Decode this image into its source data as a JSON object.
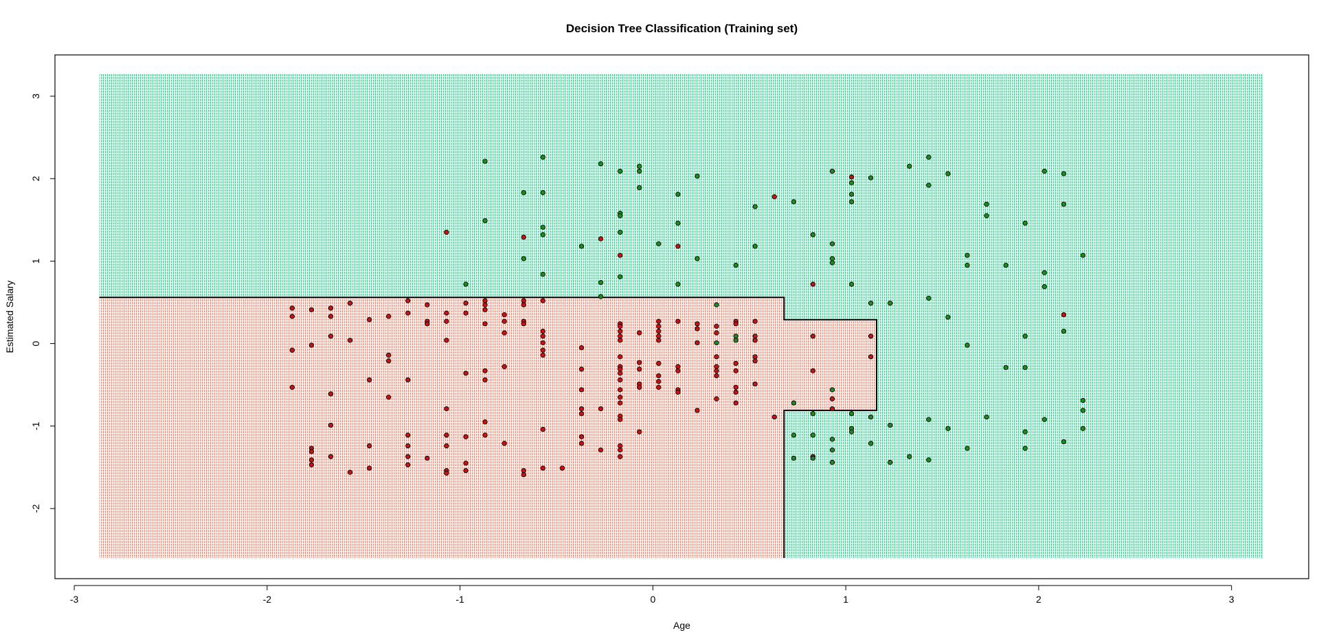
{
  "chart_data": {
    "type": "scatter",
    "title": "Decision Tree Classification (Training set)",
    "xlabel": "Age",
    "ylabel": "Estimated Salary",
    "xlim": [
      -3.1,
      3.4
    ],
    "ylim": [
      -2.85,
      3.5
    ],
    "x_ticks": [
      "-3",
      "-2",
      "-1",
      "0",
      "1",
      "2",
      "3"
    ],
    "y_ticks": [
      "-2",
      "-1",
      "0",
      "1",
      "2",
      "3"
    ],
    "grid": false,
    "region_extent": {
      "x": [
        -2.87,
        3.16
      ],
      "y": [
        -2.6,
        3.27
      ]
    },
    "colors": {
      "region_class0": "#f08a78",
      "region_class1": "#3fcf8e",
      "point_class0": "#cc1111",
      "point_class1": "#1c8c1c",
      "boundary": "#000000"
    },
    "decision_boundary": [
      [
        -2.87,
        0.56
      ],
      [
        0.68,
        0.56
      ],
      [
        0.68,
        0.29
      ],
      [
        1.16,
        0.29
      ],
      [
        1.16,
        -0.81
      ],
      [
        0.68,
        -0.81
      ],
      [
        0.68,
        -2.6
      ]
    ],
    "series": [
      {
        "class": 0,
        "points": [
          [
            -1.87,
            0.43
          ],
          [
            -1.87,
            0.33
          ],
          [
            -1.87,
            -0.08
          ],
          [
            -1.87,
            -0.53
          ],
          [
            -1.77,
            0.41
          ],
          [
            -1.77,
            -0.02
          ],
          [
            -1.77,
            -1.27
          ],
          [
            -1.77,
            -1.31
          ],
          [
            -1.77,
            -1.41
          ],
          [
            -1.77,
            -1.47
          ],
          [
            -1.67,
            0.43
          ],
          [
            -1.67,
            0.33
          ],
          [
            -1.67,
            0.09
          ],
          [
            -1.67,
            -0.61
          ],
          [
            -1.67,
            -0.99
          ],
          [
            -1.67,
            -1.37
          ],
          [
            -1.57,
            0.49
          ],
          [
            -1.57,
            0.04
          ],
          [
            -1.57,
            -1.56
          ],
          [
            -1.47,
            0.29
          ],
          [
            -1.47,
            -0.44
          ],
          [
            -1.47,
            -1.24
          ],
          [
            -1.47,
            -1.51
          ],
          [
            -1.37,
            0.33
          ],
          [
            -1.37,
            -0.14
          ],
          [
            -1.37,
            -0.21
          ],
          [
            -1.37,
            -0.65
          ],
          [
            -1.27,
            0.52
          ],
          [
            -1.27,
            0.37
          ],
          [
            -1.27,
            -0.44
          ],
          [
            -1.27,
            -1.11
          ],
          [
            -1.27,
            -1.24
          ],
          [
            -1.27,
            -1.37
          ],
          [
            -1.27,
            -1.47
          ],
          [
            -1.17,
            0.47
          ],
          [
            -1.17,
            0.27
          ],
          [
            -1.17,
            0.24
          ],
          [
            -1.17,
            -1.39
          ],
          [
            -1.07,
            1.35
          ],
          [
            -1.07,
            0.37
          ],
          [
            -1.07,
            0.27
          ],
          [
            -1.07,
            0.04
          ],
          [
            -1.07,
            -0.79
          ],
          [
            -1.07,
            -1.11
          ],
          [
            -1.07,
            -1.24
          ],
          [
            -1.07,
            -1.54
          ],
          [
            -1.07,
            -1.57
          ],
          [
            -0.97,
            0.49
          ],
          [
            -0.97,
            0.37
          ],
          [
            -0.97,
            -0.36
          ],
          [
            -0.97,
            -1.13
          ],
          [
            -0.97,
            -1.45
          ],
          [
            -0.97,
            -1.54
          ],
          [
            -0.87,
            0.52
          ],
          [
            -0.87,
            0.47
          ],
          [
            -0.87,
            0.41
          ],
          [
            -0.87,
            0.24
          ],
          [
            -0.87,
            -0.33
          ],
          [
            -0.87,
            -0.44
          ],
          [
            -0.87,
            -0.95
          ],
          [
            -0.87,
            -1.11
          ],
          [
            -0.77,
            0.35
          ],
          [
            -0.77,
            0.27
          ],
          [
            -0.77,
            0.13
          ],
          [
            -0.77,
            -0.28
          ],
          [
            -0.77,
            -1.21
          ],
          [
            -0.67,
            1.29
          ],
          [
            -0.67,
            0.52
          ],
          [
            -0.67,
            0.47
          ],
          [
            -0.67,
            0.27
          ],
          [
            -0.67,
            0.24
          ],
          [
            -0.67,
            -1.54
          ],
          [
            -0.67,
            -1.59
          ],
          [
            -0.57,
            0.52
          ],
          [
            -0.57,
            0.15
          ],
          [
            -0.57,
            0.09
          ],
          [
            -0.57,
            0.01
          ],
          [
            -0.57,
            -0.08
          ],
          [
            -0.57,
            -0.14
          ],
          [
            -0.57,
            -1.04
          ],
          [
            -0.57,
            -1.51
          ],
          [
            -0.47,
            -1.51
          ],
          [
            -0.37,
            -0.05
          ],
          [
            -0.37,
            -0.31
          ],
          [
            -0.37,
            -0.56
          ],
          [
            -0.37,
            -0.79
          ],
          [
            -0.37,
            -0.85
          ],
          [
            -0.37,
            -1.13
          ],
          [
            -0.37,
            -1.21
          ],
          [
            -0.27,
            1.27
          ],
          [
            -0.27,
            -0.79
          ],
          [
            -0.27,
            -1.29
          ],
          [
            -0.17,
            1.07
          ],
          [
            -0.17,
            0.24
          ],
          [
            -0.17,
            0.21
          ],
          [
            -0.17,
            0.15
          ],
          [
            -0.17,
            0.09
          ],
          [
            -0.17,
            0.04
          ],
          [
            -0.17,
            -0.16
          ],
          [
            -0.17,
            -0.28
          ],
          [
            -0.17,
            -0.31
          ],
          [
            -0.17,
            -0.36
          ],
          [
            -0.17,
            -0.44
          ],
          [
            -0.17,
            -0.56
          ],
          [
            -0.17,
            -0.65
          ],
          [
            -0.17,
            -0.72
          ],
          [
            -0.17,
            -0.88
          ],
          [
            -0.17,
            -0.92
          ],
          [
            -0.17,
            -1.24
          ],
          [
            -0.17,
            -1.29
          ],
          [
            -0.17,
            -1.37
          ],
          [
            -0.07,
            0.13
          ],
          [
            -0.07,
            -0.23
          ],
          [
            -0.07,
            -0.31
          ],
          [
            -0.07,
            -0.49
          ],
          [
            -0.07,
            -0.53
          ],
          [
            -0.07,
            -1.07
          ],
          [
            0.03,
            0.27
          ],
          [
            0.03,
            0.21
          ],
          [
            0.03,
            0.15
          ],
          [
            0.03,
            0.09
          ],
          [
            0.03,
            0.04
          ],
          [
            0.03,
            -0.24
          ],
          [
            0.03,
            -0.39
          ],
          [
            0.03,
            -0.46
          ],
          [
            0.03,
            -0.53
          ],
          [
            0.13,
            1.18
          ],
          [
            0.13,
            0.27
          ],
          [
            0.13,
            -0.28
          ],
          [
            0.13,
            -0.33
          ],
          [
            0.13,
            -0.56
          ],
          [
            0.13,
            -0.59
          ],
          [
            0.23,
            0.24
          ],
          [
            0.23,
            0.18
          ],
          [
            0.23,
            0.01
          ],
          [
            0.23,
            -0.81
          ],
          [
            0.33,
            0.21
          ],
          [
            0.33,
            0.13
          ],
          [
            0.33,
            -0.16
          ],
          [
            0.33,
            -0.28
          ],
          [
            0.33,
            -0.33
          ],
          [
            0.33,
            -0.39
          ],
          [
            0.33,
            -0.67
          ],
          [
            0.43,
            0.27
          ],
          [
            0.43,
            0.24
          ],
          [
            0.43,
            -0.24
          ],
          [
            0.43,
            -0.33
          ],
          [
            0.43,
            -0.53
          ],
          [
            0.43,
            -0.59
          ],
          [
            0.43,
            -0.72
          ],
          [
            0.53,
            0.27
          ],
          [
            0.53,
            0.09
          ],
          [
            0.53,
            0.04
          ],
          [
            0.53,
            -0.16
          ],
          [
            0.53,
            -0.21
          ],
          [
            0.53,
            -0.49
          ],
          [
            0.63,
            1.78
          ],
          [
            0.63,
            -0.89
          ],
          [
            0.83,
            0.72
          ],
          [
            0.83,
            0.09
          ],
          [
            0.83,
            -0.33
          ],
          [
            0.83,
            -1.37
          ],
          [
            0.93,
            -0.67
          ],
          [
            0.93,
            -0.79
          ],
          [
            1.03,
            2.02
          ],
          [
            1.13,
            0.09
          ],
          [
            1.13,
            -0.16
          ],
          [
            2.13,
            0.35
          ]
        ]
      },
      {
        "class": 1,
        "points": [
          [
            -0.87,
            2.21
          ],
          [
            -0.97,
            0.72
          ],
          [
            -0.87,
            1.49
          ],
          [
            -0.67,
            1.83
          ],
          [
            -0.67,
            1.03
          ],
          [
            -0.57,
            2.26
          ],
          [
            -0.57,
            1.83
          ],
          [
            -0.57,
            1.41
          ],
          [
            -0.57,
            1.32
          ],
          [
            -0.57,
            0.84
          ],
          [
            -0.37,
            1.18
          ],
          [
            -0.27,
            2.18
          ],
          [
            -0.27,
            0.74
          ],
          [
            -0.27,
            0.57
          ],
          [
            -0.17,
            2.09
          ],
          [
            -0.17,
            1.58
          ],
          [
            -0.17,
            1.55
          ],
          [
            -0.17,
            1.35
          ],
          [
            -0.17,
            0.81
          ],
          [
            -0.07,
            2.15
          ],
          [
            -0.07,
            2.09
          ],
          [
            -0.07,
            1.89
          ],
          [
            0.03,
            1.21
          ],
          [
            0.13,
            1.81
          ],
          [
            0.13,
            1.46
          ],
          [
            0.13,
            0.72
          ],
          [
            0.23,
            2.03
          ],
          [
            0.23,
            1.03
          ],
          [
            0.33,
            0.47
          ],
          [
            0.33,
            0.01
          ],
          [
            0.43,
            0.95
          ],
          [
            0.43,
            0.09
          ],
          [
            0.43,
            0.04
          ],
          [
            0.53,
            1.66
          ],
          [
            0.53,
            1.18
          ],
          [
            0.73,
            1.72
          ],
          [
            0.73,
            -0.72
          ],
          [
            0.73,
            -1.11
          ],
          [
            0.73,
            -1.39
          ],
          [
            0.83,
            1.32
          ],
          [
            0.83,
            -0.85
          ],
          [
            0.83,
            -1.11
          ],
          [
            0.83,
            -1.39
          ],
          [
            0.93,
            2.09
          ],
          [
            0.93,
            1.21
          ],
          [
            0.93,
            1.03
          ],
          [
            0.93,
            0.98
          ],
          [
            0.93,
            -0.56
          ],
          [
            0.93,
            -1.16
          ],
          [
            0.93,
            -1.29
          ],
          [
            0.93,
            -1.44
          ],
          [
            1.03,
            1.95
          ],
          [
            1.03,
            1.81
          ],
          [
            1.03,
            1.72
          ],
          [
            1.03,
            0.72
          ],
          [
            1.03,
            -0.85
          ],
          [
            1.03,
            -1.03
          ],
          [
            1.03,
            -1.07
          ],
          [
            1.13,
            2.01
          ],
          [
            1.13,
            0.49
          ],
          [
            1.13,
            -0.89
          ],
          [
            1.13,
            -1.21
          ],
          [
            1.23,
            0.49
          ],
          [
            1.23,
            -0.99
          ],
          [
            1.23,
            -1.44
          ],
          [
            1.33,
            2.15
          ],
          [
            1.33,
            -1.37
          ],
          [
            1.43,
            2.26
          ],
          [
            1.43,
            1.92
          ],
          [
            1.43,
            0.55
          ],
          [
            1.43,
            -0.92
          ],
          [
            1.43,
            -1.41
          ],
          [
            1.53,
            2.06
          ],
          [
            1.53,
            0.32
          ],
          [
            1.53,
            -1.03
          ],
          [
            1.63,
            1.07
          ],
          [
            1.63,
            0.95
          ],
          [
            1.63,
            -0.02
          ],
          [
            1.63,
            -1.27
          ],
          [
            1.73,
            1.69
          ],
          [
            1.73,
            1.55
          ],
          [
            1.73,
            -0.89
          ],
          [
            1.83,
            0.95
          ],
          [
            1.83,
            -0.29
          ],
          [
            1.93,
            1.46
          ],
          [
            1.93,
            0.09
          ],
          [
            1.93,
            -0.29
          ],
          [
            1.93,
            -1.07
          ],
          [
            1.93,
            -1.27
          ],
          [
            2.03,
            2.09
          ],
          [
            2.03,
            0.86
          ],
          [
            2.03,
            0.69
          ],
          [
            2.03,
            -0.92
          ],
          [
            2.13,
            2.06
          ],
          [
            2.13,
            1.69
          ],
          [
            2.13,
            0.15
          ],
          [
            2.13,
            -1.19
          ],
          [
            2.23,
            1.07
          ],
          [
            2.23,
            -0.69
          ],
          [
            2.23,
            -0.81
          ],
          [
            2.23,
            -1.03
          ]
        ]
      }
    ]
  }
}
